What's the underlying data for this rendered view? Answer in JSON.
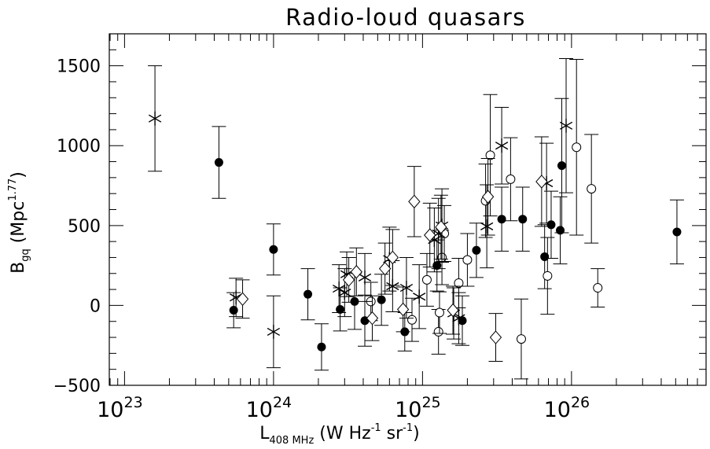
{
  "chart_data": {
    "type": "scatter",
    "title": "Radio-loud quasars",
    "xlabel": {
      "main": "L",
      "sub": "408 MHz",
      "rest": " (W Hz",
      "sup1": "-1",
      "mid": " sr",
      "sup2": "-1",
      "end": ")"
    },
    "ylabel": {
      "main": "B",
      "sub": "gq",
      "rest": " (Mpc",
      "sup": "1.77",
      "end": ")"
    },
    "xscale": "log",
    "xlim": [
      7.9e+22,
      8e+26
    ],
    "ylim": [
      -500,
      1700
    ],
    "xticks": [
      {
        "value": 1e+23,
        "base": "10",
        "exp": "23"
      },
      {
        "value": 1e+24,
        "base": "10",
        "exp": "24"
      },
      {
        "value": 1e+25,
        "base": "10",
        "exp": "25"
      },
      {
        "value": 1e+26,
        "base": "10",
        "exp": "26"
      }
    ],
    "yticks": [
      {
        "value": -500,
        "label": "−500"
      },
      {
        "value": 0,
        "label": "0"
      },
      {
        "value": 500,
        "label": "500"
      },
      {
        "value": 1000,
        "label": "1000"
      },
      {
        "value": 1500,
        "label": "1500"
      }
    ],
    "series": [
      {
        "marker": "filled-circle",
        "points": [
          {
            "x": 4.3e+23,
            "y": 895,
            "err": 225
          },
          {
            "x": 5.4e+23,
            "y": -30,
            "err": 110
          },
          {
            "x": 1e+24,
            "y": 350,
            "err": 160
          },
          {
            "x": 1.7e+24,
            "y": 70,
            "err": 160
          },
          {
            "x": 2.1e+24,
            "y": -260,
            "err": 145
          },
          {
            "x": 2.8e+24,
            "y": -25,
            "err": 135
          },
          {
            "x": 3.5e+24,
            "y": 25,
            "err": 175
          },
          {
            "x": 4.1e+24,
            "y": -95,
            "err": 160
          },
          {
            "x": 5.3e+24,
            "y": 35,
            "err": 160
          },
          {
            "x": 7.6e+24,
            "y": -165,
            "err": 120
          },
          {
            "x": 1.25e+25,
            "y": 250,
            "err": 160
          },
          {
            "x": 1.85e+25,
            "y": -95,
            "err": 155
          },
          {
            "x": 2.3e+25,
            "y": 345,
            "err": 170
          },
          {
            "x": 3.4e+25,
            "y": 540,
            "err": 200
          },
          {
            "x": 4.7e+25,
            "y": 540,
            "err": 200
          },
          {
            "x": 6.6e+25,
            "y": 305,
            "err": 200
          },
          {
            "x": 7.3e+25,
            "y": 505,
            "err": 210
          },
          {
            "x": 8.4e+25,
            "y": 470,
            "err": 210
          },
          {
            "x": 8.6e+25,
            "y": 875,
            "err": 420
          },
          {
            "x": 5.1e+26,
            "y": 460,
            "err": 200
          }
        ]
      },
      {
        "marker": "open-circle",
        "points": [
          {
            "x": 4.5e+24,
            "y": 25,
            "err": 120
          },
          {
            "x": 8.5e+24,
            "y": -90,
            "err": 135
          },
          {
            "x": 1.07e+25,
            "y": 160,
            "err": 165
          },
          {
            "x": 1.28e+25,
            "y": -165,
            "err": 140
          },
          {
            "x": 1.3e+25,
            "y": -45,
            "err": 130
          },
          {
            "x": 1.35e+25,
            "y": 300,
            "err": 170
          },
          {
            "x": 1.4e+25,
            "y": 450,
            "err": 175
          },
          {
            "x": 1.75e+25,
            "y": 140,
            "err": 155
          },
          {
            "x": 2e+25,
            "y": 285,
            "err": 165
          },
          {
            "x": 2.65e+25,
            "y": 655,
            "err": 230
          },
          {
            "x": 2.85e+25,
            "y": 940,
            "err": 380
          },
          {
            "x": 3.9e+25,
            "y": 790,
            "err": 260
          },
          {
            "x": 4.6e+25,
            "y": -210,
            "err": 250
          },
          {
            "x": 6.9e+25,
            "y": 185,
            "err": 240
          },
          {
            "x": 1.08e+26,
            "y": 990,
            "err": 550
          },
          {
            "x": 1.36e+26,
            "y": 730,
            "err": 340
          },
          {
            "x": 1.5e+26,
            "y": 110,
            "err": 120
          }
        ]
      },
      {
        "marker": "asterisk",
        "points": [
          {
            "x": 1.6e+23,
            "y": 1170,
            "err": 330
          },
          {
            "x": 5.6e+23,
            "y": 50,
            "err": 120
          },
          {
            "x": 1e+24,
            "y": -165,
            "err": 225
          },
          {
            "x": 2.75e+24,
            "y": 105,
            "err": 150
          },
          {
            "x": 3e+24,
            "y": 80,
            "err": 150
          },
          {
            "x": 3.1e+24,
            "y": 195,
            "err": 140
          },
          {
            "x": 4.1e+24,
            "y": 175,
            "err": 150
          },
          {
            "x": 6e+24,
            "y": 290,
            "err": 200
          },
          {
            "x": 6.3e+24,
            "y": 120,
            "err": 160
          },
          {
            "x": 7.8e+24,
            "y": 110,
            "err": 190
          },
          {
            "x": 9.5e+24,
            "y": 55,
            "err": 200
          },
          {
            "x": 1.2e+25,
            "y": 410,
            "err": 200
          },
          {
            "x": 1.28e+25,
            "y": 450,
            "err": 220
          },
          {
            "x": 1.35e+25,
            "y": 500,
            "err": 230
          },
          {
            "x": 1.62e+25,
            "y": -50,
            "err": 160
          },
          {
            "x": 1.75e+25,
            "y": -80,
            "err": 160
          },
          {
            "x": 2.7e+25,
            "y": 495,
            "err": 260
          },
          {
            "x": 3.4e+25,
            "y": 1000,
            "err": 240
          },
          {
            "x": 6.8e+25,
            "y": 765,
            "err": 250
          },
          {
            "x": 9.2e+25,
            "y": 1125,
            "err": 420
          }
        ]
      },
      {
        "marker": "open-diamond",
        "points": [
          {
            "x": 6.2e+23,
            "y": 40,
            "err": 120
          },
          {
            "x": 3.2e+24,
            "y": 160,
            "err": 140
          },
          {
            "x": 3.6e+24,
            "y": 210,
            "err": 150
          },
          {
            "x": 4.6e+24,
            "y": -80,
            "err": 140
          },
          {
            "x": 5.6e+24,
            "y": 230,
            "err": 160
          },
          {
            "x": 6.3e+24,
            "y": 300,
            "err": 175
          },
          {
            "x": 7.4e+24,
            "y": -25,
            "err": 140
          },
          {
            "x": 8.8e+24,
            "y": 650,
            "err": 220
          },
          {
            "x": 1.12e+25,
            "y": 440,
            "err": 200
          },
          {
            "x": 1.33e+25,
            "y": 490,
            "err": 200
          },
          {
            "x": 1.6e+25,
            "y": -30,
            "err": 150
          },
          {
            "x": 2.75e+25,
            "y": 680,
            "err": 240
          },
          {
            "x": 3.1e+25,
            "y": -200,
            "err": 150
          },
          {
            "x": 6.3e+25,
            "y": 775,
            "err": 280
          }
        ]
      }
    ]
  }
}
